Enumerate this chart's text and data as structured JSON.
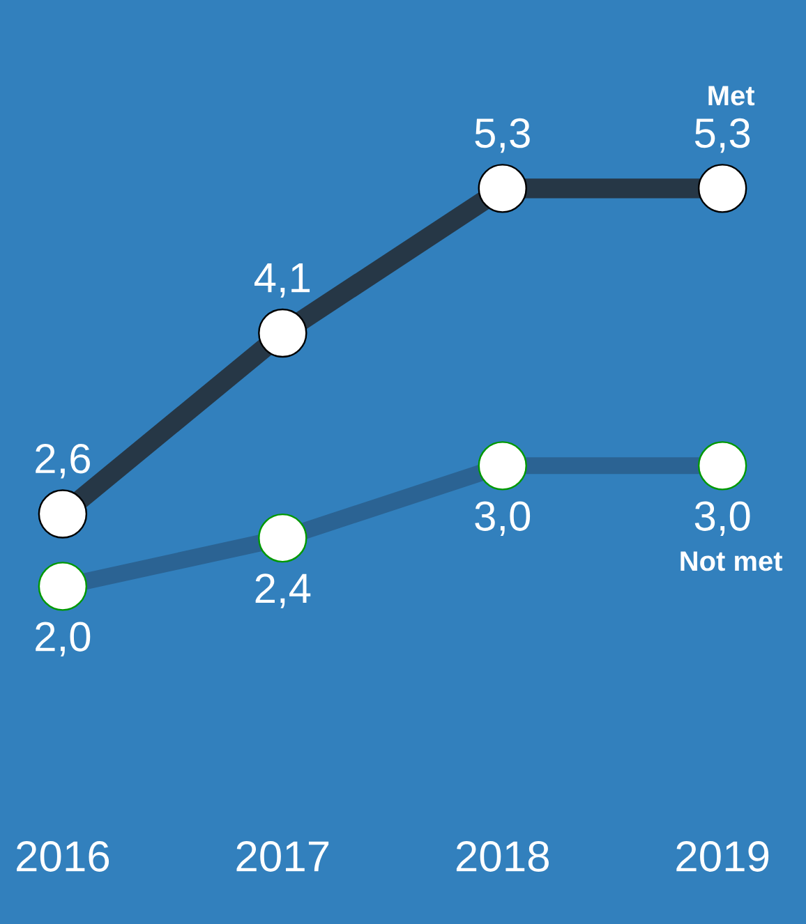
{
  "chart_data": {
    "type": "line",
    "categories": [
      "2016",
      "2017",
      "2018",
      "2019"
    ],
    "series": [
      {
        "name": "Met",
        "color": "#263746",
        "values": [
          2.6,
          4.1,
          5.3,
          5.3
        ],
        "value_labels": [
          "2,6",
          "4,1",
          "5,3",
          "5,3"
        ]
      },
      {
        "name": "Not met",
        "color": "#2b6393",
        "values": [
          2.0,
          2.4,
          3.0,
          3.0
        ],
        "value_labels": [
          "2,0",
          "2,4",
          "3,0",
          "3,0"
        ]
      }
    ],
    "tick_labels": "x",
    "grid": false,
    "legend": false,
    "marker": "circle",
    "line_style": "solid"
  }
}
